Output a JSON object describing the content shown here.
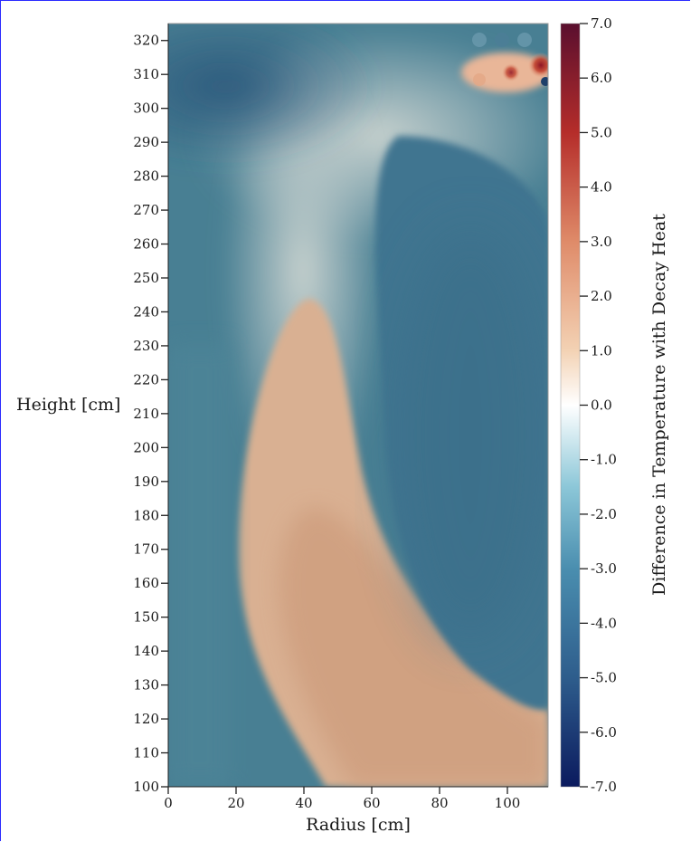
{
  "chart_data": {
    "type": "heatmap",
    "title": "",
    "xlabel": "Radius [cm]",
    "ylabel": "Height [cm]",
    "xlim": [
      0,
      112
    ],
    "ylim": [
      100,
      325
    ],
    "x_ticks": [
      0,
      20,
      40,
      60,
      80,
      100
    ],
    "y_ticks": [
      100,
      110,
      120,
      130,
      140,
      150,
      160,
      170,
      180,
      190,
      200,
      210,
      220,
      230,
      240,
      250,
      260,
      270,
      280,
      290,
      300,
      310,
      320
    ],
    "grid": false,
    "colorbar": {
      "label": "Difference in Temperature with Decay Heat",
      "range": [
        -7.0,
        7.0
      ],
      "tick_labels": [
        "7.0",
        "6.0",
        "5.0",
        "4.0",
        "3.0",
        "2.0",
        "1.0",
        "0.0",
        "-1.0",
        "-2.0",
        "-3.0",
        "-4.0",
        "-5.0",
        "-6.0",
        "-7.0"
      ],
      "tick_values": [
        7,
        6,
        5,
        4,
        3,
        2,
        1,
        0,
        -1,
        -2,
        -3,
        -4,
        -5,
        -6,
        -7
      ],
      "colormap": [
        {
          "value": -7.0,
          "color": "#0b1a5e"
        },
        {
          "value": -5.0,
          "color": "#2e5d8c"
        },
        {
          "value": -3.0,
          "color": "#4a8eaf"
        },
        {
          "value": -1.5,
          "color": "#8cc7d8"
        },
        {
          "value": 0.0,
          "color": "#ffffff"
        },
        {
          "value": 1.0,
          "color": "#f3d2b4"
        },
        {
          "value": 3.0,
          "color": "#df8b69"
        },
        {
          "value": 5.0,
          "color": "#b52d2a"
        },
        {
          "value": 7.0,
          "color": "#5a0f2e"
        }
      ]
    },
    "field_regions": [
      {
        "name": "background",
        "approx_value": -3.0
      },
      {
        "name": "upper-left-cold",
        "x": 10,
        "y": 308,
        "approx_value": -4.3
      },
      {
        "name": "right-cold-lobe",
        "x": 92,
        "y": 200,
        "approx_value": -4.0
      },
      {
        "name": "warm-plume",
        "x": 65,
        "y": 130,
        "approx_value": 1.8
      },
      {
        "name": "upper-middle-neutral",
        "x": 60,
        "y": 275,
        "approx_value": -0.8
      },
      {
        "name": "hot-spot-corner",
        "x": 110,
        "y": 312,
        "approx_value": 6.2
      }
    ]
  }
}
